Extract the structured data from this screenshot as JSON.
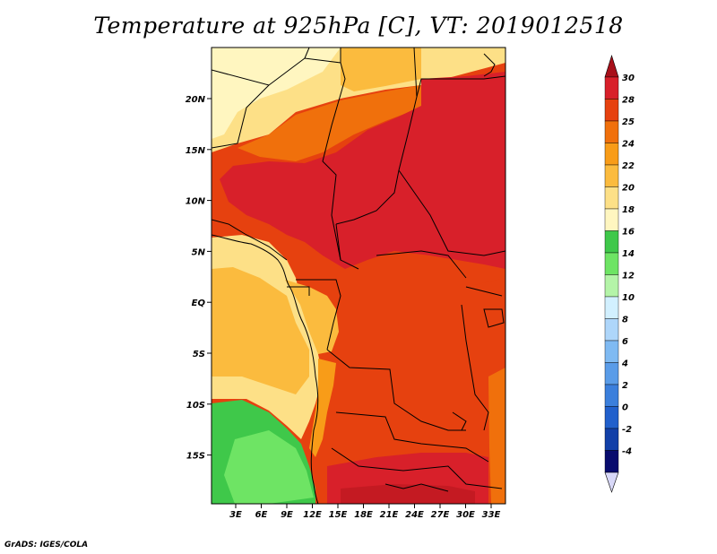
{
  "title": "Temperature at 925hPa [C], VT: 2019012518",
  "footer": "GrADS: IGES/COLA",
  "map": {
    "lat_labels": [
      "20N",
      "15N",
      "10N",
      "5N",
      "EQ",
      "5S",
      "10S",
      "15S"
    ],
    "lon_labels": [
      "3E",
      "6E",
      "9E",
      "12E",
      "15E",
      "18E",
      "21E",
      "24E",
      "27E",
      "30E",
      "33E"
    ]
  },
  "colorbar": {
    "labels": [
      "30",
      "28",
      "25",
      "24",
      "22",
      "20",
      "18",
      "16",
      "14",
      "12",
      "10",
      "8",
      "6",
      "4",
      "2",
      "0",
      "-2",
      "-4"
    ],
    "colors": [
      "#d8202a",
      "#e6410f",
      "#f0700c",
      "#f89c18",
      "#fbbb3e",
      "#fde087",
      "#fff6c0",
      "#3fc84a",
      "#6ee464",
      "#b4f4a8",
      "#d2f0ff",
      "#aed6fa",
      "#7fbaf2",
      "#5a9ce8",
      "#3b7fdc",
      "#2160cc",
      "#1240a8",
      "#080c6e"
    ],
    "top_triangle_color": "#a8101a",
    "bottom_triangle_color": "#d8d8f8"
  }
}
